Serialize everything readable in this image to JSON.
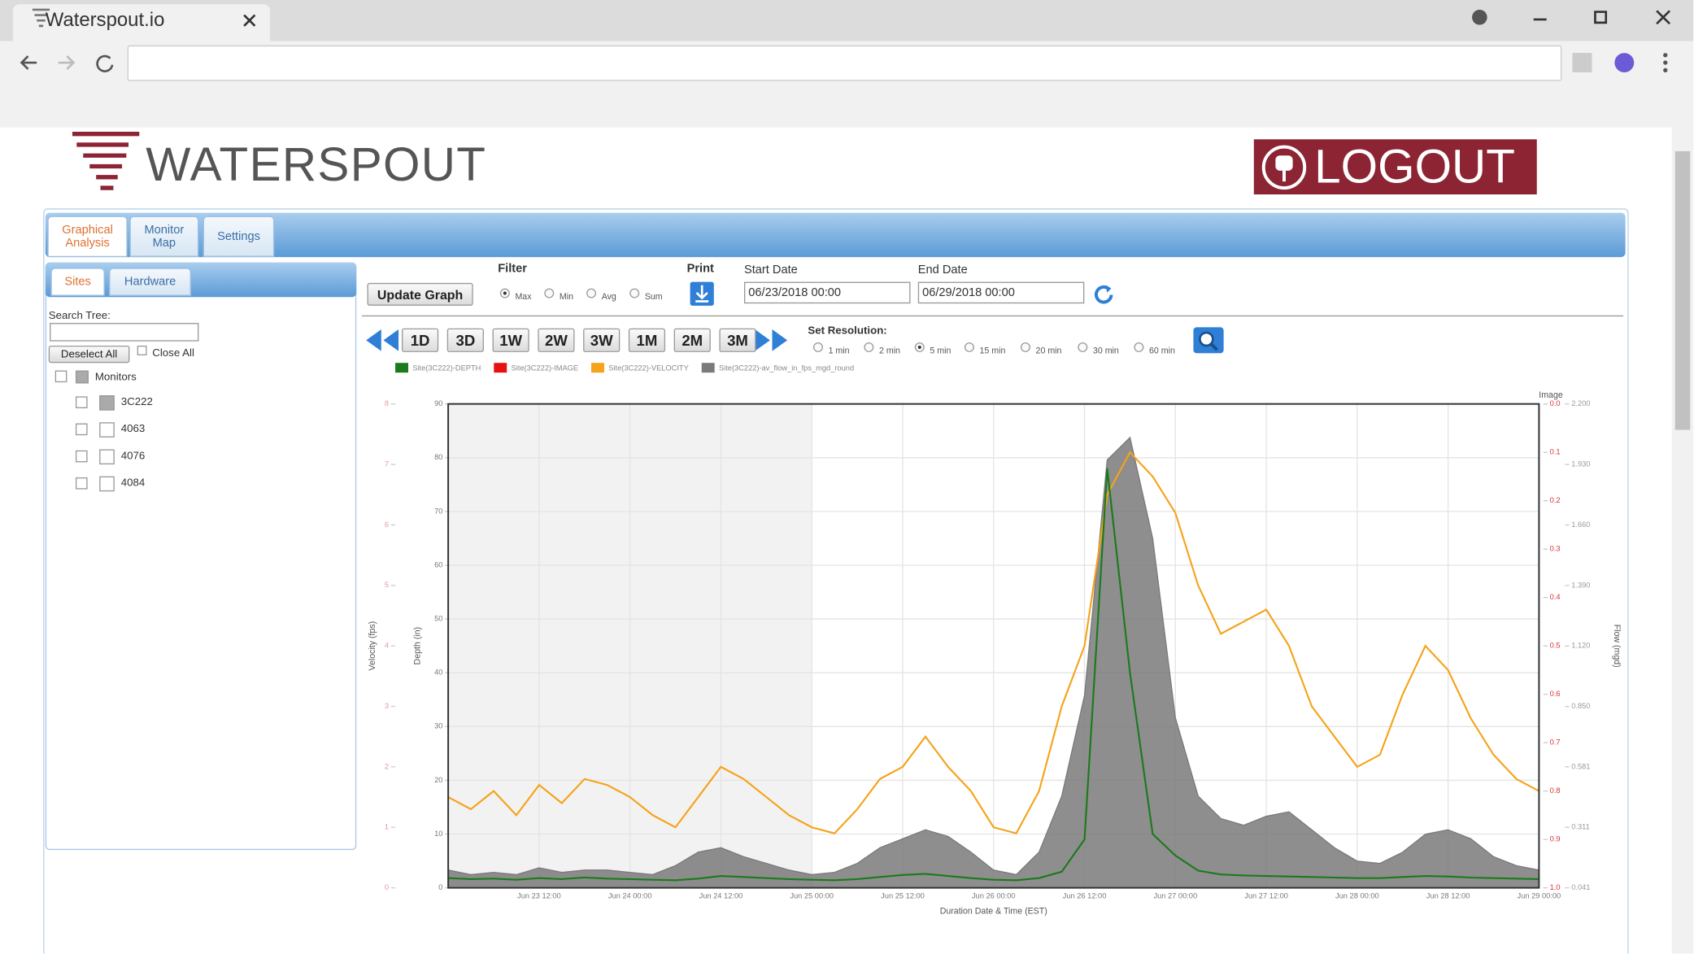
{
  "browser": {
    "tab_title": "Waterspout.io"
  },
  "header": {
    "logo": "WATERSPOUT",
    "logout": "LOGOUT"
  },
  "nav_tabs": [
    "Graphical Analysis",
    "Monitor Map",
    "Settings"
  ],
  "nav_active": "Graphical Analysis",
  "sidebar": {
    "tabs": [
      "Sites",
      "Hardware"
    ],
    "active_tab": "Sites",
    "search_label": "Search Tree:",
    "deselect_all": "Deselect All",
    "close_all": "Close All",
    "tree": {
      "root": "Monitors",
      "children": [
        "3C222",
        "4063",
        "4076",
        "4084"
      ]
    }
  },
  "controls": {
    "update_graph": "Update Graph",
    "filter_label": "Filter",
    "filter_options": [
      "Max",
      "Min",
      "Avg",
      "Sum"
    ],
    "filter_checked": "Max",
    "print_label": "Print",
    "start_date_label": "Start Date",
    "start_date": "06/23/2018 00:00",
    "end_date_label": "End Date",
    "end_date": "06/29/2018 00:00",
    "range_buttons": [
      "1D",
      "3D",
      "1W",
      "2W",
      "3W",
      "1M",
      "2M",
      "3M"
    ],
    "resolution_label": "Set Resolution:",
    "resolution_options": [
      "1 min",
      "2 min",
      "5 min",
      "15 min",
      "20 min",
      "30 min",
      "60 min"
    ],
    "resolution_checked": "5 min"
  },
  "chart_data": {
    "type": "line",
    "x_label": "Duration Date & Time (EST)",
    "x": [
      "Jun 23 00:00",
      "Jun 23 03:00",
      "Jun 23 06:00",
      "Jun 23 09:00",
      "Jun 23 12:00",
      "Jun 23 15:00",
      "Jun 23 18:00",
      "Jun 23 21:00",
      "Jun 24 00:00",
      "Jun 24 03:00",
      "Jun 24 06:00",
      "Jun 24 09:00",
      "Jun 24 12:00",
      "Jun 24 15:00",
      "Jun 24 18:00",
      "Jun 24 21:00",
      "Jun 25 00:00",
      "Jun 25 03:00",
      "Jun 25 06:00",
      "Jun 25 09:00",
      "Jun 25 12:00",
      "Jun 25 15:00",
      "Jun 25 18:00",
      "Jun 25 21:00",
      "Jun 26 00:00",
      "Jun 26 03:00",
      "Jun 26 06:00",
      "Jun 26 09:00",
      "Jun 26 12:00",
      "Jun 26 15:00",
      "Jun 26 18:00",
      "Jun 26 21:00",
      "Jun 27 00:00",
      "Jun 27 03:00",
      "Jun 27 06:00",
      "Jun 27 09:00",
      "Jun 27 12:00",
      "Jun 27 15:00",
      "Jun 27 18:00",
      "Jun 27 21:00",
      "Jun 28 00:00",
      "Jun 28 03:00",
      "Jun 28 06:00",
      "Jun 28 09:00",
      "Jun 28 12:00",
      "Jun 28 15:00",
      "Jun 28 18:00",
      "Jun 28 21:00",
      "Jun 29 00:00"
    ],
    "xticks": [
      "Jun 23 12:00",
      "Jun 24 00:00",
      "Jun 24 12:00",
      "Jun 25 00:00",
      "Jun 25 12:00",
      "Jun 26 00:00",
      "Jun 26 12:00",
      "Jun 27 00:00",
      "Jun 27 12:00",
      "Jun 28 00:00",
      "Jun 28 12:00",
      "Jun 29 00:00"
    ],
    "axes": [
      {
        "title": "Velocity (fps)",
        "lim": [
          0,
          8
        ],
        "ticks": [
          0,
          1,
          2,
          3,
          4,
          5,
          6,
          7,
          8
        ]
      },
      {
        "title": "Depth (in)",
        "lim": [
          0,
          90
        ],
        "ticks": [
          0,
          10,
          20,
          30,
          40,
          50,
          60,
          70,
          80,
          90
        ]
      },
      {
        "title": "Image",
        "lim": [
          1,
          0
        ],
        "ticks": [
          {
            "value": 0,
            "label": "0.0"
          },
          0.1,
          0.2,
          0.3,
          0.4,
          0.5,
          0.6,
          0.7,
          0.8,
          0.9,
          {
            "value": 1,
            "label": "1.0"
          }
        ]
      },
      {
        "title": "Flow (mgd)",
        "lim": [
          0.041,
          2.2
        ],
        "ticks": [
          0.041,
          0.311,
          0.581,
          {
            "value": 0.85,
            "label": "0.850"
          },
          {
            "value": 1.12,
            "label": "1.120"
          },
          {
            "value": 1.39,
            "label": "1.390"
          },
          {
            "value": 1.66,
            "label": "1.660"
          },
          {
            "value": 1.93,
            "label": "1.930"
          },
          {
            "value": 2.2,
            "label": "2.200"
          }
        ]
      }
    ],
    "grid": true,
    "series": [
      {
        "name": "Site(3C222)-DEPTH",
        "color": "#1b7a1b",
        "axis": 1,
        "values": [
          1.8,
          1.6,
          1.7,
          1.5,
          1.8,
          1.6,
          1.9,
          1.7,
          1.6,
          1.5,
          1.4,
          1.7,
          2.2,
          2.0,
          1.8,
          1.6,
          1.5,
          1.4,
          1.6,
          2.0,
          2.4,
          2.6,
          2.2,
          1.8,
          1.5,
          1.4,
          1.8,
          3.0,
          9.0,
          78,
          40,
          10,
          6,
          3.2,
          2.5,
          2.3,
          2.2,
          2.1,
          2.0,
          1.9,
          1.8,
          1.8,
          2.0,
          2.2,
          2.1,
          1.9,
          1.8,
          1.7,
          1.6
        ]
      },
      {
        "name": "Site(3C222)-IMAGE",
        "color": "#e81010",
        "axis": 2
      },
      {
        "name": "Site(3C222)-VELOCITY",
        "color": "#f5a31a",
        "axis": 0,
        "values": [
          1.5,
          1.3,
          1.6,
          1.2,
          1.7,
          1.4,
          1.8,
          1.7,
          1.5,
          1.2,
          1.0,
          1.5,
          2.0,
          1.8,
          1.5,
          1.2,
          1.0,
          0.9,
          1.3,
          1.8,
          2.0,
          2.5,
          2.0,
          1.6,
          1.0,
          0.9,
          1.6,
          3.0,
          4.0,
          6.5,
          7.2,
          6.8,
          6.2,
          5.0,
          4.2,
          4.4,
          4.6,
          4.0,
          3.0,
          2.5,
          2.0,
          2.2,
          3.2,
          4.0,
          3.6,
          2.8,
          2.2,
          1.8,
          1.6
        ]
      },
      {
        "name": "Site(3C222)-av_flow_in_fps_mgd_round",
        "color": "#7a7a7a",
        "axis": 3,
        "fill": true,
        "values": [
          0.12,
          0.1,
          0.11,
          0.1,
          0.13,
          0.11,
          0.12,
          0.12,
          0.11,
          0.1,
          0.14,
          0.2,
          0.22,
          0.18,
          0.15,
          0.12,
          0.1,
          0.11,
          0.15,
          0.22,
          0.26,
          0.3,
          0.27,
          0.2,
          0.12,
          0.1,
          0.2,
          0.45,
          0.9,
          1.95,
          2.05,
          1.6,
          0.8,
          0.45,
          0.35,
          0.32,
          0.36,
          0.38,
          0.3,
          0.22,
          0.16,
          0.15,
          0.2,
          0.28,
          0.3,
          0.26,
          0.18,
          0.14,
          0.12
        ]
      }
    ]
  }
}
